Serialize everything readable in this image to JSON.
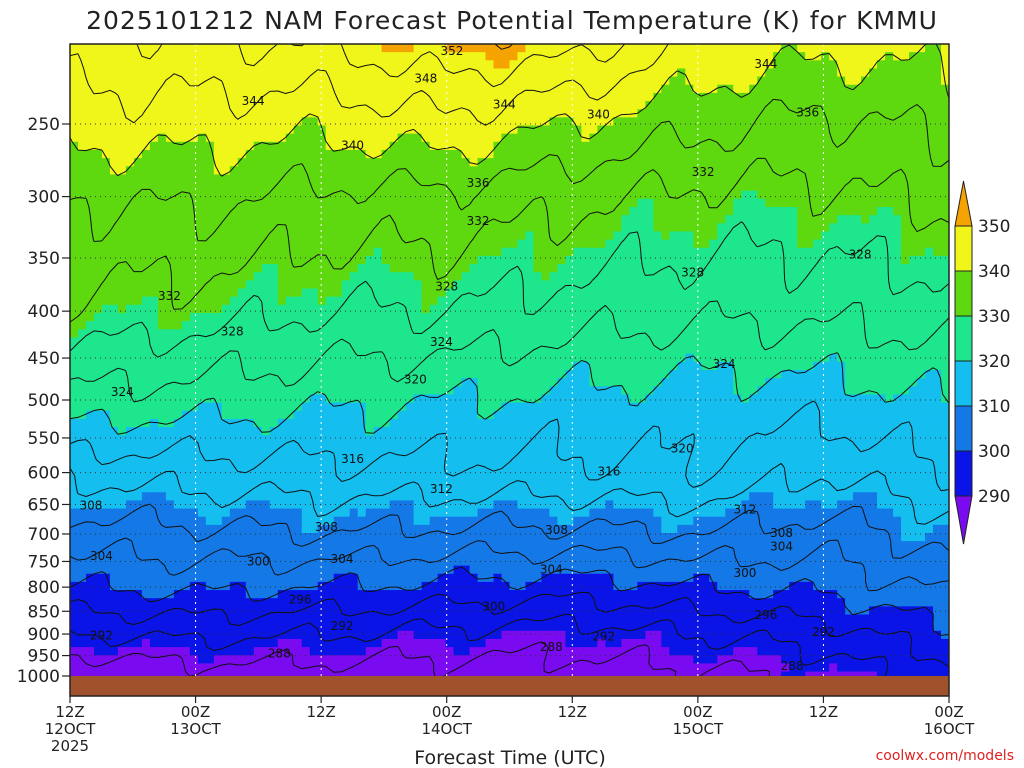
{
  "chart_data": {
    "type": "heatmap",
    "title": "2025101212 NAM Forecast Potential Temperature (K) for KMMU",
    "xlabel": "Forecast Time (UTC)",
    "ylabel": "",
    "y_axis": {
      "scale": "log-pressure",
      "reversed": true,
      "ticks": [
        "250",
        "300",
        "350",
        "400",
        "450",
        "500",
        "550",
        "600",
        "650",
        "700",
        "750",
        "800",
        "850",
        "900",
        "950",
        "1000"
      ]
    },
    "x_axis": {
      "ticks": [
        {
          "hours": 0,
          "line1": "12Z",
          "line2": "12OCT",
          "line3": "2025"
        },
        {
          "hours": 12,
          "line1": "00Z",
          "line2": "13OCT",
          "line3": ""
        },
        {
          "hours": 24,
          "line1": "12Z",
          "line2": "",
          "line3": ""
        },
        {
          "hours": 36,
          "line1": "00Z",
          "line2": "14OCT",
          "line3": ""
        },
        {
          "hours": 48,
          "line1": "12Z",
          "line2": "",
          "line3": ""
        },
        {
          "hours": 60,
          "line1": "00Z",
          "line2": "15OCT",
          "line3": ""
        },
        {
          "hours": 72,
          "line1": "12Z",
          "line2": "",
          "line3": ""
        },
        {
          "hours": 84,
          "line1": "00Z",
          "line2": "16OCT",
          "line3": ""
        }
      ]
    },
    "colorbar": {
      "units": "K",
      "levels": [
        "350",
        "340",
        "330",
        "320",
        "310",
        "300",
        "290"
      ],
      "bands": [
        {
          "min": 350,
          "max": 360,
          "color": "#f5a300"
        },
        {
          "min": 340,
          "max": 350,
          "color": "#f0f51a"
        },
        {
          "min": 330,
          "max": 340,
          "color": "#5fd90f"
        },
        {
          "min": 320,
          "max": 330,
          "color": "#1ee68c"
        },
        {
          "min": 310,
          "max": 320,
          "color": "#14bff0"
        },
        {
          "min": 300,
          "max": 310,
          "color": "#1478e6"
        },
        {
          "min": 290,
          "max": 300,
          "color": "#0a14e6"
        },
        {
          "min": 280,
          "max": 290,
          "color": "#7a0af0"
        }
      ]
    },
    "contour_interval": 4,
    "contour_labels": [
      {
        "text": "352",
        "hours": 36.5,
        "pressure": 208
      },
      {
        "text": "348",
        "hours": 34,
        "pressure": 223
      },
      {
        "text": "344",
        "hours": 17.5,
        "pressure": 236
      },
      {
        "text": "344",
        "hours": 41.5,
        "pressure": 238
      },
      {
        "text": "344",
        "hours": 66.5,
        "pressure": 215
      },
      {
        "text": "340",
        "hours": 27,
        "pressure": 264
      },
      {
        "text": "340",
        "hours": 50.5,
        "pressure": 244
      },
      {
        "text": "336",
        "hours": 70.5,
        "pressure": 243
      },
      {
        "text": "336",
        "hours": 39,
        "pressure": 290
      },
      {
        "text": "332",
        "hours": 60.5,
        "pressure": 282
      },
      {
        "text": "332",
        "hours": 39,
        "pressure": 319
      },
      {
        "text": "332",
        "hours": 9.5,
        "pressure": 385
      },
      {
        "text": "328",
        "hours": 15.5,
        "pressure": 421
      },
      {
        "text": "328",
        "hours": 36,
        "pressure": 376
      },
      {
        "text": "328",
        "hours": 59.5,
        "pressure": 363
      },
      {
        "text": "328",
        "hours": 75.5,
        "pressure": 347
      },
      {
        "text": "324",
        "hours": 5,
        "pressure": 490
      },
      {
        "text": "324",
        "hours": 35.5,
        "pressure": 432
      },
      {
        "text": "324",
        "hours": 62.5,
        "pressure": 457
      },
      {
        "text": "320",
        "hours": 33,
        "pressure": 475
      },
      {
        "text": "320",
        "hours": 58.5,
        "pressure": 565
      },
      {
        "text": "316",
        "hours": 27,
        "pressure": 580
      },
      {
        "text": "316",
        "hours": 51.5,
        "pressure": 598
      },
      {
        "text": "312",
        "hours": 35.5,
        "pressure": 625
      },
      {
        "text": "312",
        "hours": 64.5,
        "pressure": 658
      },
      {
        "text": "308",
        "hours": 2,
        "pressure": 652
      },
      {
        "text": "308",
        "hours": 24.5,
        "pressure": 688
      },
      {
        "text": "308",
        "hours": 46.5,
        "pressure": 693
      },
      {
        "text": "308",
        "hours": 68,
        "pressure": 698
      },
      {
        "text": "304",
        "hours": 3,
        "pressure": 740
      },
      {
        "text": "304",
        "hours": 26,
        "pressure": 745
      },
      {
        "text": "304",
        "hours": 46,
        "pressure": 765
      },
      {
        "text": "304",
        "hours": 68,
        "pressure": 722
      },
      {
        "text": "300",
        "hours": 18,
        "pressure": 750
      },
      {
        "text": "300",
        "hours": 40.5,
        "pressure": 840
      },
      {
        "text": "300",
        "hours": 64.5,
        "pressure": 772
      },
      {
        "text": "296",
        "hours": 22,
        "pressure": 825
      },
      {
        "text": "296",
        "hours": 66.5,
        "pressure": 858
      },
      {
        "text": "292",
        "hours": 3,
        "pressure": 903
      },
      {
        "text": "292",
        "hours": 26,
        "pressure": 882
      },
      {
        "text": "292",
        "hours": 51,
        "pressure": 905
      },
      {
        "text": "292",
        "hours": 72,
        "pressure": 895
      },
      {
        "text": "288",
        "hours": 20,
        "pressure": 945
      },
      {
        "text": "288",
        "hours": 46,
        "pressure": 930
      },
      {
        "text": "288",
        "hours": 69,
        "pressure": 975
      }
    ],
    "credit": "coolwx.com/models"
  }
}
